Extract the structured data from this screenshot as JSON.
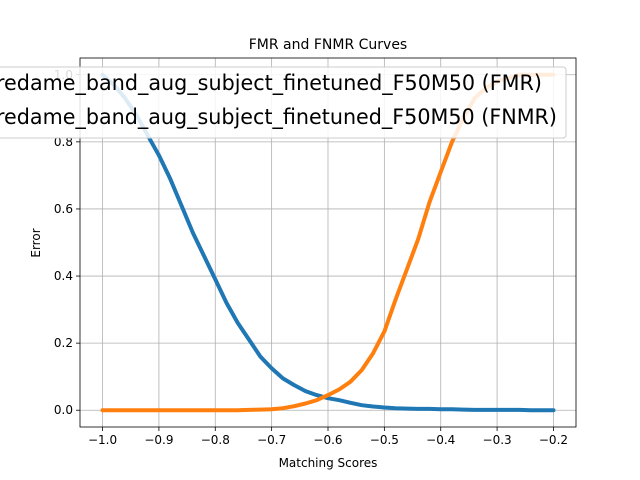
{
  "chart_data": {
    "type": "line",
    "title": "FMR and FNMR Curves",
    "xlabel": "Matching Scores",
    "ylabel": "Error",
    "xlim": [
      -1.04,
      -0.16
    ],
    "ylim": [
      -0.05,
      1.05
    ],
    "xticks": [
      -1.0,
      -0.9,
      -0.8,
      -0.7,
      -0.6,
      -0.5,
      -0.4,
      -0.3,
      -0.2
    ],
    "xtick_labels": [
      "−1.0",
      "−0.9",
      "−0.8",
      "−0.7",
      "−0.6",
      "−0.5",
      "−0.4",
      "−0.3",
      "−0.2"
    ],
    "yticks": [
      0.0,
      0.2,
      0.4,
      0.6,
      0.8,
      1.0
    ],
    "ytick_labels": [
      "0.0",
      "0.2",
      "0.4",
      "0.6",
      "0.8",
      "1.0"
    ],
    "grid": true,
    "legend_position": "top",
    "series": [
      {
        "name": "redame_band_aug_subject_finetuned_F50M50 (FMR)",
        "color": "#1f77b4",
        "x": [
          -1.0,
          -0.98,
          -0.96,
          -0.94,
          -0.92,
          -0.9,
          -0.88,
          -0.86,
          -0.84,
          -0.82,
          -0.8,
          -0.78,
          -0.76,
          -0.74,
          -0.72,
          -0.7,
          -0.68,
          -0.66,
          -0.64,
          -0.62,
          -0.6,
          -0.58,
          -0.56,
          -0.54,
          -0.52,
          -0.5,
          -0.48,
          -0.46,
          -0.44,
          -0.42,
          -0.4,
          -0.38,
          -0.36,
          -0.34,
          -0.32,
          -0.3,
          -0.28,
          -0.26,
          -0.24,
          -0.22,
          -0.2
        ],
        "y": [
          1.0,
          0.97,
          0.93,
          0.88,
          0.82,
          0.76,
          0.69,
          0.61,
          0.53,
          0.46,
          0.39,
          0.32,
          0.26,
          0.21,
          0.16,
          0.125,
          0.095,
          0.075,
          0.057,
          0.045,
          0.036,
          0.03,
          0.022,
          0.015,
          0.011,
          0.008,
          0.006,
          0.005,
          0.004,
          0.004,
          0.003,
          0.003,
          0.002,
          0.001,
          0.001,
          0.001,
          0.001,
          0.001,
          0.0,
          0.0,
          0.0
        ]
      },
      {
        "name": "redame_band_aug_subject_finetuned_F50M50 (FNMR)",
        "color": "#ff7f0e",
        "x": [
          -1.0,
          -0.98,
          -0.96,
          -0.94,
          -0.92,
          -0.9,
          -0.88,
          -0.86,
          -0.84,
          -0.82,
          -0.8,
          -0.78,
          -0.76,
          -0.74,
          -0.72,
          -0.7,
          -0.68,
          -0.66,
          -0.64,
          -0.62,
          -0.6,
          -0.58,
          -0.56,
          -0.54,
          -0.52,
          -0.5,
          -0.48,
          -0.46,
          -0.44,
          -0.42,
          -0.4,
          -0.38,
          -0.36,
          -0.34,
          -0.32,
          -0.3,
          -0.28,
          -0.26,
          -0.24,
          -0.22,
          -0.2
        ],
        "y": [
          0.0,
          0.0,
          0.0,
          0.0,
          0.0,
          0.0,
          0.0,
          0.0,
          0.0,
          0.0,
          0.0,
          0.0,
          0.0,
          0.001,
          0.002,
          0.003,
          0.006,
          0.012,
          0.02,
          0.03,
          0.045,
          0.062,
          0.085,
          0.12,
          0.17,
          0.235,
          0.33,
          0.42,
          0.51,
          0.62,
          0.71,
          0.8,
          0.87,
          0.93,
          0.96,
          0.98,
          0.99,
          1.0,
          1.0,
          1.0,
          1.0
        ]
      }
    ]
  }
}
